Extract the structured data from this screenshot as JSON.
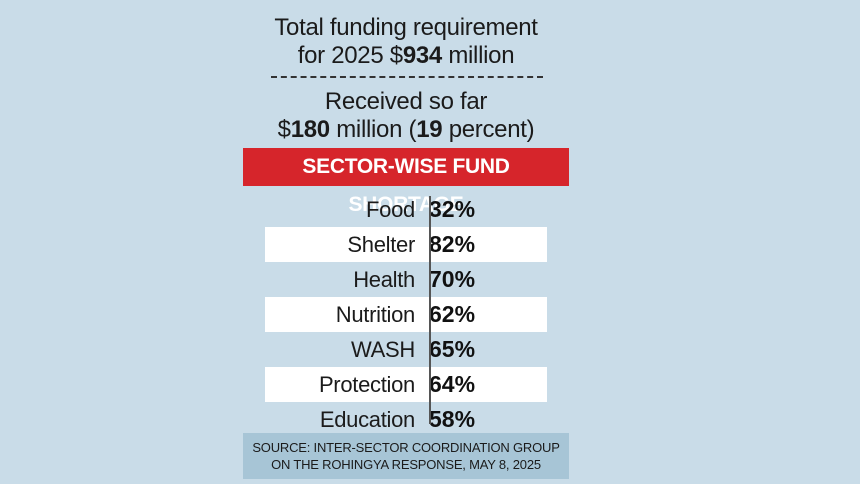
{
  "total": {
    "line1": "Total funding requirement",
    "line2_prefix": "for 2025 $",
    "amount": "934",
    "line2_suffix": " million"
  },
  "received": {
    "line1": "Received so far",
    "line2_prefix": "$",
    "amount": "180",
    "line2_mid": " million (",
    "percent": "19",
    "line2_suffix": " percent)"
  },
  "banner": "SECTOR-WISE FUND SHORTAGE",
  "rows": [
    {
      "sector": "Food",
      "value": "32%"
    },
    {
      "sector": "Shelter",
      "value": "82%"
    },
    {
      "sector": "Health",
      "value": "70%"
    },
    {
      "sector": "Nutrition",
      "value": "62%"
    },
    {
      "sector": "WASH",
      "value": "65%"
    },
    {
      "sector": "Protection",
      "value": "64%"
    },
    {
      "sector": "Education",
      "value": "58%"
    }
  ],
  "source": {
    "line1": "SOURCE: INTER-SECTOR COORDINATION GROUP",
    "line2": "ON THE ROHINGYA RESPONSE, MAY 8, 2025"
  },
  "colors": {
    "background": "#c9dce8",
    "banner": "#d6252b",
    "source_box": "#a7c5d6"
  }
}
